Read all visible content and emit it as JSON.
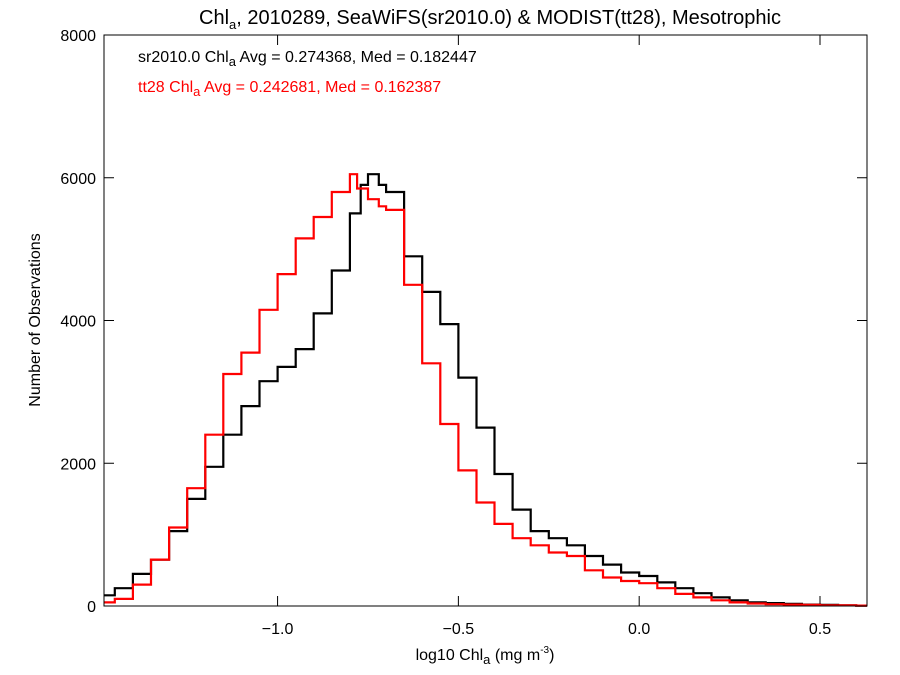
{
  "chart_data": {
    "type": "line",
    "title": {
      "pre": "Chl",
      "sub": "a",
      "post": ", 2010289, SeaWiFS(sr2010.0) & MODIST(tt28), Mesotrophic"
    },
    "xlabel": {
      "pre": "log10 Chl",
      "sub": "a",
      "post": " (mg m",
      "sup": "-3",
      "end": ")"
    },
    "ylabel": "Number of Observations",
    "xlim": [
      -1.48,
      0.63
    ],
    "ylim": [
      0,
      8000
    ],
    "xticks": [
      {
        "value": -1.0,
        "label": "−1.0"
      },
      {
        "value": -0.5,
        "label": "−0.5"
      },
      {
        "value": 0.0,
        "label": "0.0"
      },
      {
        "value": 0.5,
        "label": "0.5"
      }
    ],
    "yticks": [
      {
        "value": 0,
        "label": "0"
      },
      {
        "value": 2000,
        "label": "2000"
      },
      {
        "value": 4000,
        "label": "4000"
      },
      {
        "value": 6000,
        "label": "6000"
      },
      {
        "value": 8000,
        "label": "8000"
      }
    ],
    "annotations": [
      {
        "pre": "sr2010.0 Chl",
        "sub": "a",
        "post": " Avg = 0.274368, Med = 0.182447",
        "color": "#000000"
      },
      {
        "pre": "tt28 Chl",
        "sub": "a",
        "post": " Avg = 0.242681, Med = 0.162387",
        "color": "#ff0000"
      }
    ],
    "series": [
      {
        "color": "#000000",
        "x": [
          -1.48,
          -1.45,
          -1.4,
          -1.35,
          -1.3,
          -1.25,
          -1.2,
          -1.15,
          -1.1,
          -1.05,
          -1.0,
          -0.95,
          -0.9,
          -0.85,
          -0.8,
          -0.77,
          -0.75,
          -0.72,
          -0.7,
          -0.65,
          -0.6,
          -0.55,
          -0.5,
          -0.45,
          -0.4,
          -0.35,
          -0.3,
          -0.25,
          -0.2,
          -0.15,
          -0.1,
          -0.05,
          0.0,
          0.05,
          0.1,
          0.15,
          0.2,
          0.25,
          0.3,
          0.35,
          0.4,
          0.45,
          0.5,
          0.55,
          0.6,
          0.63
        ],
        "y": [
          150,
          250,
          450,
          650,
          1050,
          1500,
          1950,
          2400,
          2800,
          3150,
          3350,
          3600,
          4100,
          4700,
          5500,
          5900,
          6050,
          5900,
          5800,
          4900,
          4400,
          3950,
          3200,
          2500,
          1850,
          1350,
          1050,
          950,
          850,
          700,
          580,
          470,
          420,
          330,
          250,
          180,
          120,
          80,
          50,
          40,
          30,
          20,
          15,
          10,
          5,
          5
        ]
      },
      {
        "color": "#ff0000",
        "x": [
          -1.48,
          -1.45,
          -1.4,
          -1.35,
          -1.3,
          -1.25,
          -1.2,
          -1.15,
          -1.1,
          -1.05,
          -1.0,
          -0.95,
          -0.9,
          -0.85,
          -0.8,
          -0.78,
          -0.75,
          -0.72,
          -0.7,
          -0.65,
          -0.6,
          -0.55,
          -0.5,
          -0.45,
          -0.4,
          -0.35,
          -0.3,
          -0.25,
          -0.2,
          -0.15,
          -0.1,
          -0.05,
          0.0,
          0.05,
          0.1,
          0.15,
          0.2,
          0.25,
          0.3,
          0.35,
          0.4,
          0.45,
          0.5,
          0.55,
          0.6,
          0.63
        ],
        "y": [
          50,
          100,
          300,
          650,
          1100,
          1650,
          2400,
          3250,
          3550,
          4150,
          4650,
          5150,
          5450,
          5800,
          6050,
          5850,
          5700,
          5600,
          5550,
          4500,
          3400,
          2550,
          1900,
          1450,
          1150,
          950,
          850,
          750,
          700,
          500,
          400,
          350,
          320,
          250,
          170,
          120,
          80,
          50,
          35,
          25,
          20,
          15,
          10,
          8,
          5,
          5
        ]
      }
    ]
  }
}
